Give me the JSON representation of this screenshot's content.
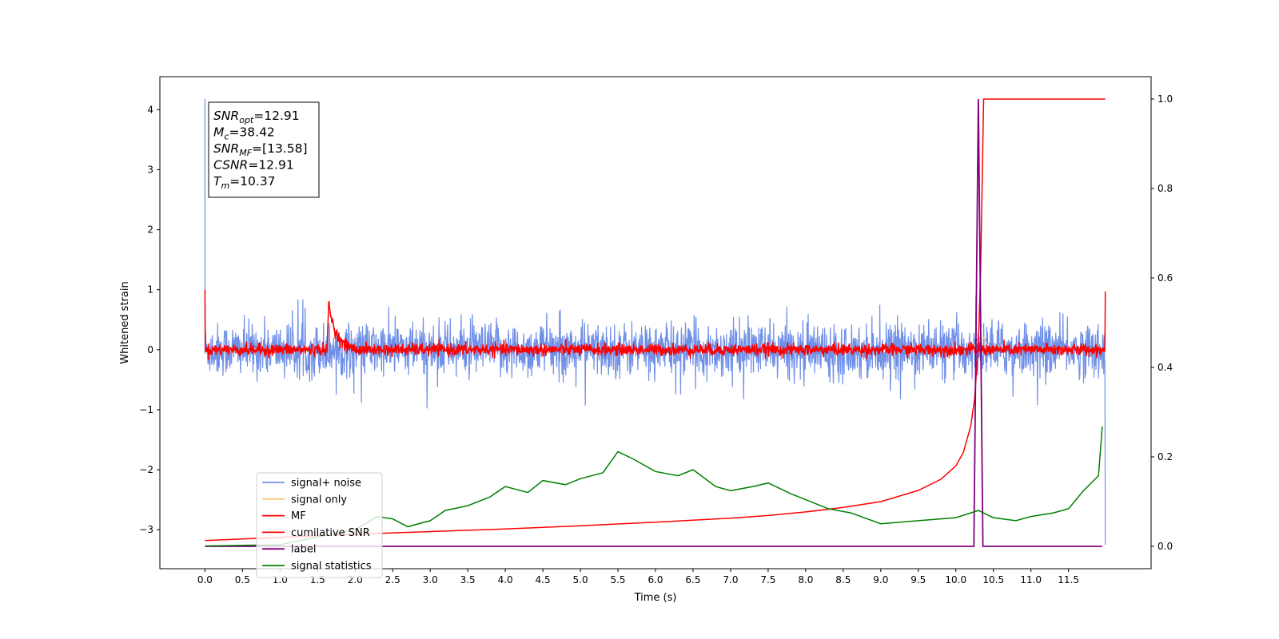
{
  "chart_data": {
    "type": "line",
    "xlabel": "Time (s)",
    "ylabel": "Whitened strain",
    "xlim": [
      -0.6,
      12.6
    ],
    "ylim": [
      -3.65,
      4.55
    ],
    "ylim_right": [
      -0.05,
      1.05
    ],
    "x_ticks": [
      "0.0",
      "0.5",
      "1.0",
      "1.5",
      "2.0",
      "2.5",
      "3.0",
      "3.5",
      "4.0",
      "4.5",
      "5.0",
      "5.5",
      "6.0",
      "6.5",
      "7.0",
      "7.5",
      "8.0",
      "8.5",
      "9.0",
      "9.5",
      "10.0",
      "10.5",
      "11.0",
      "11.5"
    ],
    "y_ticks": [
      "−3",
      "−2",
      "−1",
      "0",
      "1",
      "2",
      "3",
      "4"
    ],
    "y_right_ticks": [
      "0.0",
      "0.2",
      "0.4",
      "0.6",
      "0.8",
      "1.0"
    ],
    "grid": false,
    "legend_position": "lower-left",
    "annotation": {
      "lines": [
        {
          "sym": "SNR",
          "sub": "opt",
          "value": "=12.91"
        },
        {
          "sym": "M",
          "sub": "c",
          "value": "=38.42"
        },
        {
          "sym": "SNR",
          "sub": "MF",
          "value": "=[13.58]"
        },
        {
          "sym": "CSNR",
          "sub": "",
          "value": "=12.91"
        },
        {
          "sym": "T",
          "sub": "m",
          "value": "=10.37"
        }
      ]
    },
    "series": [
      {
        "name": "signal+ noise",
        "color": "#7090e8",
        "axis": "left",
        "description_values": {
          "x_start": 0.0,
          "x_end": 11.99,
          "band": [
            -0.55,
            0.55
          ],
          "start_spike": 4.18,
          "end_value": -3.25
        }
      },
      {
        "name": "signal only",
        "color": "#f5c97a",
        "axis": "left",
        "values_x": [
          10.2,
          10.3,
          10.37,
          10.45
        ],
        "values_y": [
          0.0,
          0.15,
          0.2,
          0.0
        ]
      },
      {
        "name": "MF",
        "color": "#ff0000",
        "axis": "left",
        "description_values": {
          "x_start": 0.0,
          "x_end": 11.99,
          "band": [
            -0.12,
            0.12
          ],
          "bump_at": 1.63,
          "bump_peak": 0.92,
          "start_value": 1.0,
          "end_value": 0.97
        }
      },
      {
        "name": "cumilative SNR",
        "color": "#ff0000",
        "axis": "right",
        "values_x": [
          0.0,
          1.0,
          2.0,
          3.0,
          4.0,
          5.0,
          6.0,
          7.0,
          7.5,
          8.0,
          8.5,
          9.0,
          9.5,
          9.8,
          10.0,
          10.1,
          10.2,
          10.25,
          10.3,
          10.33,
          10.37,
          11.99
        ],
        "values_y": [
          0.013,
          0.02,
          0.027,
          0.033,
          0.039,
          0.046,
          0.054,
          0.063,
          0.069,
          0.077,
          0.087,
          0.1,
          0.125,
          0.15,
          0.18,
          0.21,
          0.27,
          0.33,
          0.45,
          0.62,
          1.0,
          1.0
        ]
      },
      {
        "name": "label",
        "color": "#800080",
        "axis": "right",
        "values_x": [
          0.0,
          10.24,
          10.3,
          10.36,
          11.95
        ],
        "values_y": [
          0.0,
          0.0,
          1.0,
          0.0,
          0.0
        ]
      },
      {
        "name": "signal statistics",
        "color": "#008000",
        "axis": "left",
        "values_x": [
          0.0,
          0.5,
          1.0,
          1.5,
          2.0,
          2.3,
          2.5,
          2.7,
          3.0,
          3.2,
          3.5,
          3.8,
          4.0,
          4.3,
          4.5,
          4.8,
          5.0,
          5.3,
          5.5,
          5.7,
          6.0,
          6.3,
          6.5,
          6.8,
          7.0,
          7.3,
          7.5,
          7.8,
          8.0,
          8.3,
          8.6,
          9.0,
          9.5,
          10.0,
          10.3,
          10.5,
          10.8,
          11.0,
          11.3,
          11.5,
          11.7,
          11.9,
          11.95
        ],
        "values_y": [
          -3.27,
          -3.26,
          -3.25,
          -3.12,
          -3.0,
          -2.78,
          -2.82,
          -2.95,
          -2.85,
          -2.68,
          -2.6,
          -2.45,
          -2.28,
          -2.38,
          -2.18,
          -2.25,
          -2.15,
          -2.05,
          -1.7,
          -1.82,
          -2.03,
          -2.1,
          -2.0,
          -2.28,
          -2.35,
          -2.28,
          -2.22,
          -2.4,
          -2.5,
          -2.65,
          -2.72,
          -2.9,
          -2.85,
          -2.8,
          -2.68,
          -2.8,
          -2.85,
          -2.78,
          -2.72,
          -2.65,
          -2.35,
          -2.1,
          -1.28
        ]
      }
    ]
  }
}
